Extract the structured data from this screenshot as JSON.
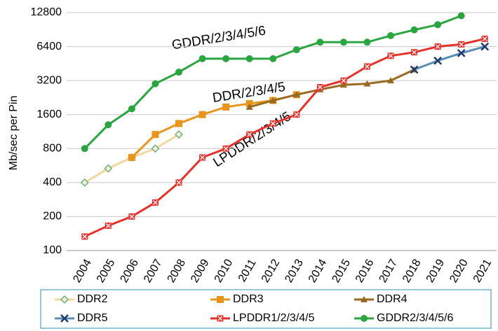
{
  "chart_data": {
    "type": "line",
    "ylabel": "Mb/sec per Pin",
    "log_scale": true,
    "grid": true,
    "ylim": [
      100,
      12800
    ],
    "yticks": [
      100,
      200,
      400,
      800,
      1600,
      3200,
      6400,
      12800
    ],
    "categories": [
      "2004",
      "2005",
      "2006",
      "2007",
      "2008",
      "2009",
      "2010",
      "2011",
      "2012",
      "2013",
      "2014",
      "2015",
      "2016",
      "2017",
      "2018",
      "2019",
      "2020",
      "2021"
    ],
    "series": [
      {
        "name": "DDR2",
        "color": "#f3d79c",
        "marker": "diamond",
        "marker_color": "#6aa66a",
        "values": [
          400,
          533,
          667,
          800,
          1066,
          null,
          null,
          null,
          null,
          null,
          null,
          null,
          null,
          null,
          null,
          null,
          null,
          null
        ]
      },
      {
        "name": "DDR3",
        "color": "#e8951c",
        "marker": "square",
        "marker_color": "#e8951c",
        "values": [
          null,
          null,
          667,
          1066,
          1333,
          1600,
          1866,
          2000,
          2133,
          2400,
          null,
          null,
          null,
          null,
          null,
          null,
          null,
          null
        ]
      },
      {
        "name": "DDR4",
        "color": "#9a6a22",
        "marker": "triangle",
        "marker_color": "#9a6a22",
        "values": [
          null,
          null,
          null,
          null,
          null,
          null,
          null,
          1866,
          2133,
          2400,
          2666,
          2933,
          3000,
          3200,
          4000,
          null,
          null,
          null
        ]
      },
      {
        "name": "DDR5",
        "color": "#5a8cb8",
        "marker": "x",
        "marker_color": "#1f3b6e",
        "values": [
          null,
          null,
          null,
          null,
          null,
          null,
          null,
          null,
          null,
          null,
          null,
          null,
          null,
          null,
          4000,
          4800,
          5600,
          6400
        ]
      },
      {
        "name": "LPDDR1/2/3/4/5",
        "color": "#e8302a",
        "marker": "xsquare",
        "marker_color": "#e8302a",
        "values": [
          133,
          166,
          200,
          266,
          400,
          667,
          800,
          1066,
          1333,
          1600,
          2800,
          3200,
          4266,
          5300,
          5700,
          6400,
          6700,
          7500
        ]
      },
      {
        "name": "GDDR2/3/4/5/6",
        "color": "#2aa640",
        "marker": "circle",
        "marker_color": "#2aa640",
        "values": [
          800,
          1300,
          1800,
          3000,
          3800,
          5000,
          5000,
          5000,
          5000,
          6000,
          7000,
          7000,
          7000,
          8000,
          9000,
          10000,
          12000,
          null
        ]
      }
    ],
    "annotations": [
      "GDDR/2/3/4/5/6",
      "DDR/2/3/4/5",
      "LPDDR/2/3/4/5"
    ]
  }
}
